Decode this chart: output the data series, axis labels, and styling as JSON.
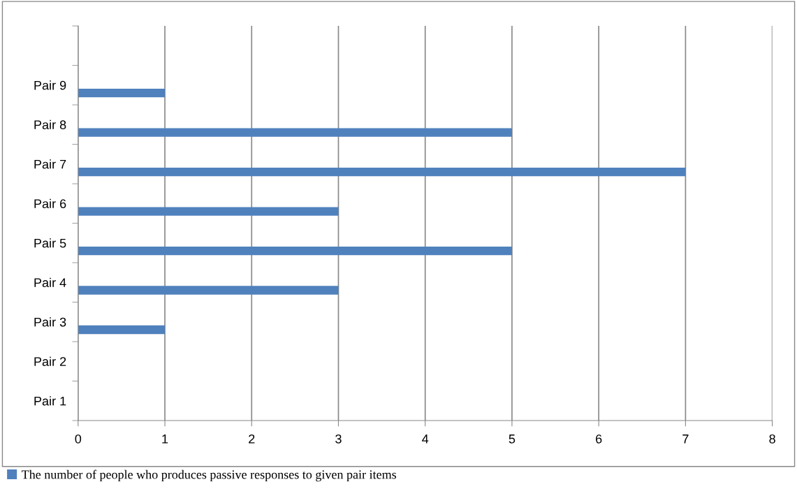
{
  "chart_data": {
    "type": "bar",
    "orientation": "horizontal",
    "categories": [
      null,
      "Pair 9",
      "Pair 8",
      "Pair 7",
      "Pair 6",
      "Pair 5",
      "Pair 4",
      "Pair 3",
      "Pair 2",
      "Pair 1"
    ],
    "series": [
      {
        "name": "The number of people who produces passive responses to given pair items",
        "color": "#4f81bd",
        "values": [
          null,
          1,
          5,
          7,
          3,
          5,
          3,
          1,
          0,
          0
        ]
      }
    ],
    "xlim": [
      0,
      8
    ],
    "xticks": [
      0,
      1,
      2,
      3,
      4,
      5,
      6,
      7,
      8
    ],
    "grid": "x",
    "legend": "bottom left"
  }
}
